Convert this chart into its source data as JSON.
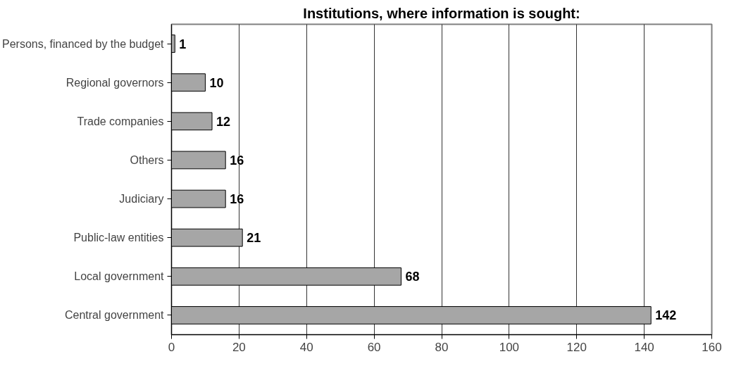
{
  "chart_data": {
    "type": "bar",
    "orientation": "horizontal",
    "title": "Institutions, where information is sought:",
    "categories": [
      "Persons, financed by the budget",
      "Regional governors",
      "Trade companies",
      "Others",
      "Judiciary",
      "Public-law entities",
      "Local government",
      "Central government"
    ],
    "values": [
      1,
      10,
      12,
      16,
      16,
      21,
      68,
      142
    ],
    "color": "#a6a6a6",
    "xlim": [
      0,
      160
    ],
    "xticks": [
      0,
      20,
      40,
      60,
      80,
      100,
      120,
      140,
      160
    ],
    "grid": "x",
    "data_labels": true
  }
}
